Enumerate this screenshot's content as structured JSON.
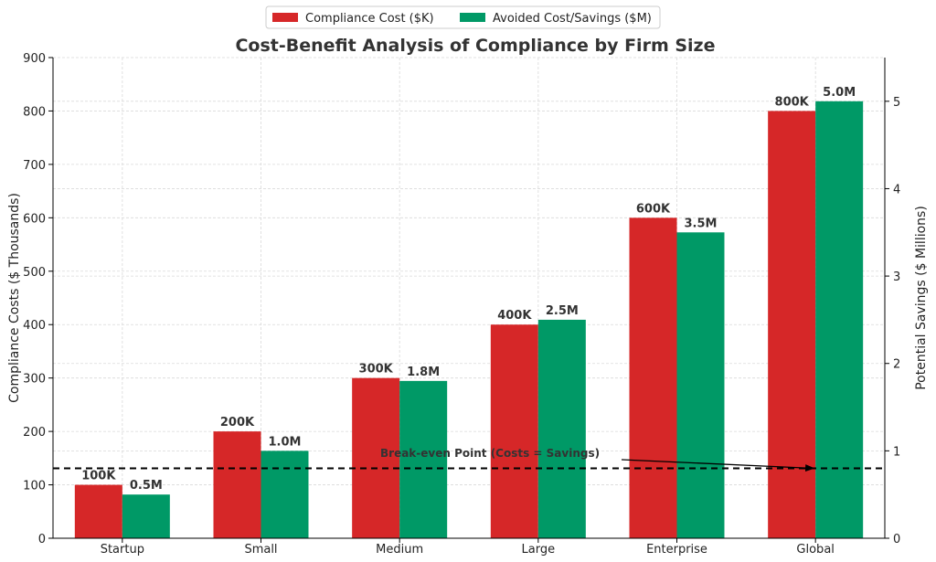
{
  "chart_data": {
    "type": "bar",
    "title": "Cost-Benefit Analysis of Compliance by Firm Size",
    "categories": [
      "Startup",
      "Small",
      "Medium",
      "Large",
      "Enterprise",
      "Global"
    ],
    "ylabel": "Compliance Costs ($ Thousands)",
    "ylabel_right": "Potential Savings ($ Millions)",
    "ylim": [
      0,
      900
    ],
    "ylim_right": [
      0,
      5.5
    ],
    "yticks": [
      "0",
      "100",
      "200",
      "300",
      "400",
      "500",
      "600",
      "700",
      "800",
      "900"
    ],
    "yticks_right": [
      "0",
      "1",
      "2",
      "3",
      "4",
      "5"
    ],
    "grid": true,
    "legend_position": "top-center",
    "series": [
      {
        "name": "Compliance Cost ($K)",
        "axis": "left",
        "color": "#d62728",
        "values": [
          100,
          200,
          300,
          400,
          600,
          800
        ],
        "labels": [
          "100K",
          "200K",
          "300K",
          "400K",
          "600K",
          "800K"
        ]
      },
      {
        "name": "Avoided Cost/Savings ($M)",
        "axis": "right",
        "color": "#009966",
        "values": [
          0.5,
          1.0,
          1.8,
          2.5,
          3.5,
          5.0
        ],
        "labels": [
          "0.5M",
          "1.0M",
          "1.8M",
          "2.5M",
          "3.5M",
          "5.0M"
        ]
      }
    ],
    "reference_line": {
      "axis": "right",
      "value": 0.8,
      "style": "dashed",
      "color": "#000000"
    },
    "annotation": {
      "text": "Break-even Point (Costs = Savings)",
      "points_to_category": "Global"
    }
  }
}
